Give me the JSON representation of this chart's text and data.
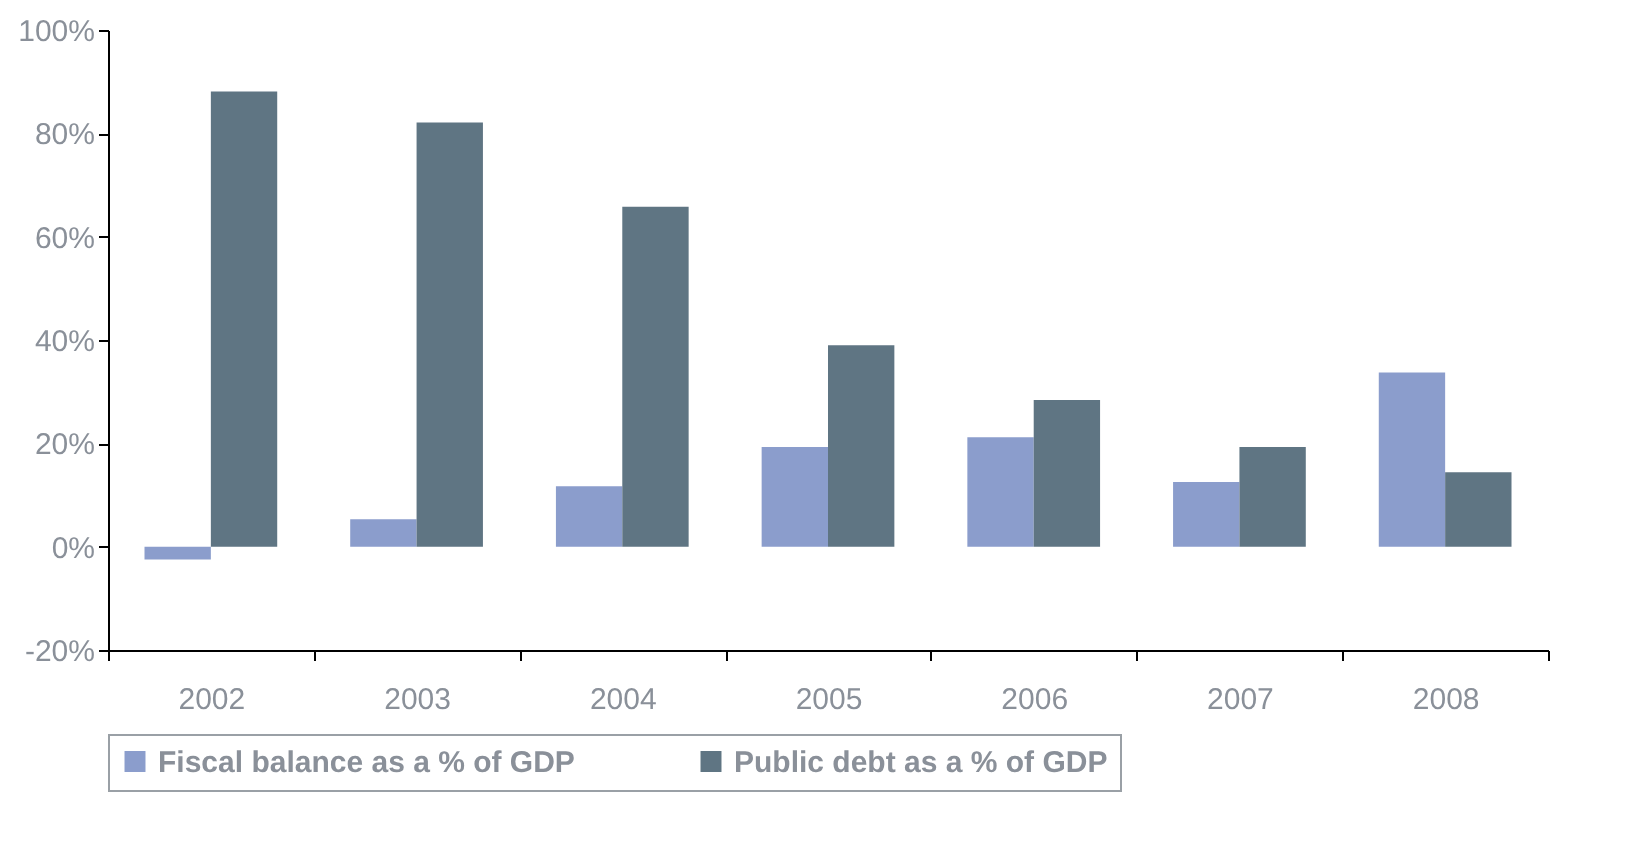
{
  "chart_data": {
    "type": "bar",
    "categories": [
      "2002",
      "2003",
      "2004",
      "2005",
      "2006",
      "2007",
      "2008"
    ],
    "series": [
      {
        "name": "Fiscal balance as a % of GDP",
        "color": "#8b9dcc",
        "values": [
          -2.5,
          5.3,
          11.7,
          19.3,
          21.2,
          12.5,
          33.7
        ]
      },
      {
        "name": "Public debt as a % of GDP",
        "color": "#5f7583",
        "values": [
          88.1,
          82.1,
          65.8,
          39.0,
          28.4,
          19.3,
          14.4
        ]
      }
    ],
    "ylim": [
      -20,
      100
    ],
    "yticks": [
      {
        "value": -20,
        "label": "-20%"
      },
      {
        "value": 0,
        "label": "0%"
      },
      {
        "value": 20,
        "label": "20%"
      },
      {
        "value": 40,
        "label": "40%"
      },
      {
        "value": 60,
        "label": "60%"
      },
      {
        "value": 80,
        "label": "80%"
      },
      {
        "value": 100,
        "label": "100%"
      }
    ],
    "grid": false,
    "legend": "bottom"
  }
}
